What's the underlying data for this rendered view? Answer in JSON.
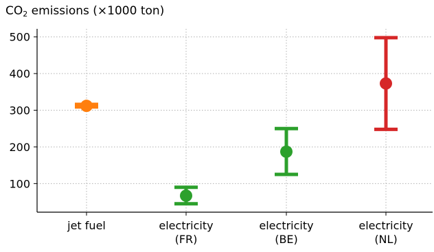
{
  "chart_data": {
    "type": "errorbar",
    "title_prefix": "CO",
    "title_sub": "2",
    "title_suffix": " emissions (×1000 ton)",
    "categories": [
      [
        "jet fuel"
      ],
      [
        "electricity",
        "(FR)"
      ],
      [
        "electricity",
        "(BE)"
      ],
      [
        "electricity",
        "(NL)"
      ]
    ],
    "points": [
      {
        "value": 312,
        "low": 309,
        "high": 316,
        "color": "#ff7f0e"
      },
      {
        "value": 67,
        "low": 45,
        "high": 90,
        "color": "#2ca02c"
      },
      {
        "value": 187,
        "low": 125,
        "high": 250,
        "color": "#2ca02c"
      },
      {
        "value": 373,
        "low": 248,
        "high": 498,
        "color": "#d62728"
      }
    ],
    "yticks": [
      100,
      200,
      300,
      400,
      500
    ],
    "ylim": [
      22,
      522
    ],
    "grid": true
  }
}
